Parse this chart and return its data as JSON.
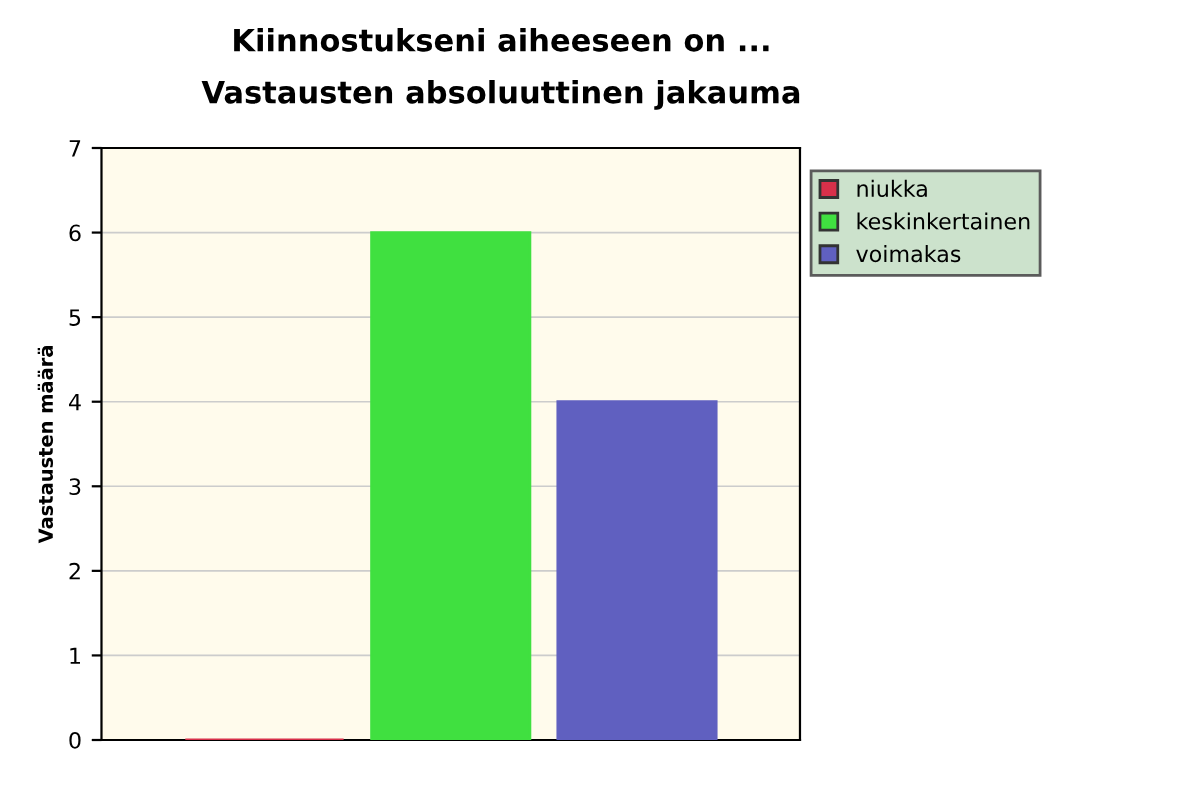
{
  "chart_data": {
    "type": "bar",
    "title": "Kiinnostukseni aiheeseen on ...",
    "subtitle": "Vastausten absoluuttinen jakauma",
    "ylabel": "Vastausten määrä",
    "categories": [
      null
    ],
    "series": [
      {
        "name": "niukka",
        "color": "#d8304a",
        "values": [
          0
        ]
      },
      {
        "name": "keskinkertainen",
        "color": "#40e040",
        "values": [
          6
        ]
      },
      {
        "name": "voimakas",
        "color": "#6060c0",
        "values": [
          4
        ]
      }
    ],
    "ylim": [
      0,
      7
    ],
    "yticks": [
      0,
      1,
      2,
      3,
      4,
      5,
      6,
      7
    ],
    "grid": "y",
    "legend": "top right"
  }
}
